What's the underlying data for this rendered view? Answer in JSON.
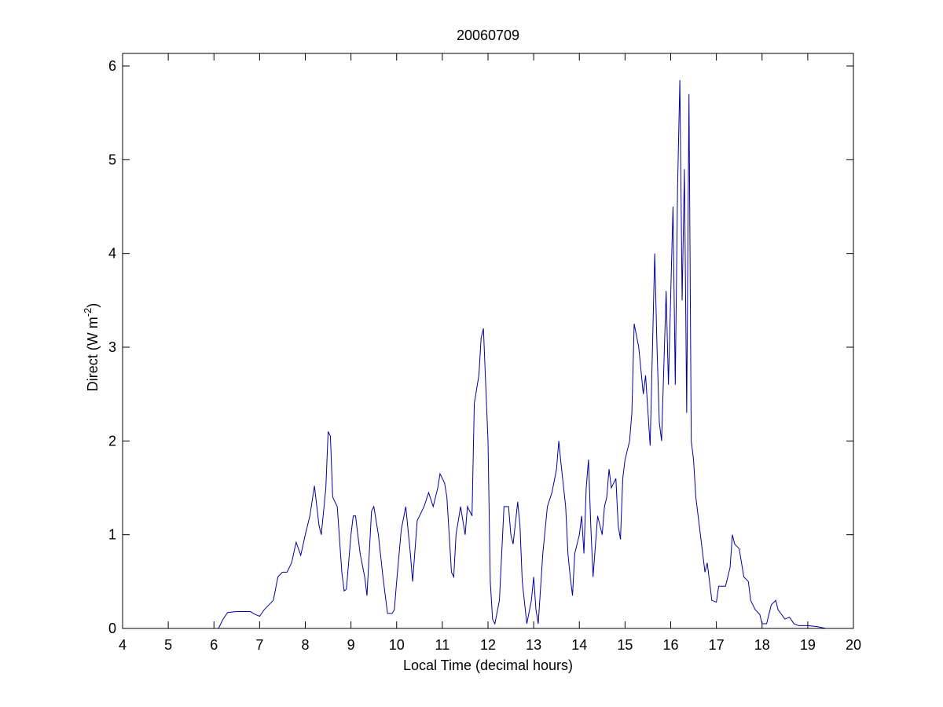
{
  "chart_data": {
    "type": "line",
    "title": "20060709",
    "xlabel": "Local Time (decimal hours)",
    "ylabel": [
      "Direct (W m",
      "-2",
      ")"
    ],
    "xlim": [
      4,
      20
    ],
    "xticks": [
      4,
      5,
      6,
      7,
      8,
      9,
      10,
      11,
      12,
      13,
      14,
      15,
      16,
      17,
      18,
      19,
      20
    ],
    "ylim": [
      0,
      6
    ],
    "yticks": [
      0,
      1,
      2,
      3,
      4,
      5,
      6
    ],
    "grid": false,
    "series": [
      {
        "color": "#0000a0",
        "x": [
          6.1,
          6.2,
          6.3,
          6.5,
          6.8,
          6.9,
          7.0,
          7.1,
          7.2,
          7.3,
          7.4,
          7.5,
          7.6,
          7.7,
          7.8,
          7.9,
          8.0,
          8.1,
          8.2,
          8.3,
          8.35,
          8.45,
          8.5,
          8.55,
          8.6,
          8.7,
          8.8,
          8.85,
          8.9,
          9.0,
          9.05,
          9.1,
          9.2,
          9.3,
          9.35,
          9.45,
          9.5,
          9.6,
          9.7,
          9.8,
          9.9,
          9.95,
          10.0,
          10.1,
          10.2,
          10.3,
          10.35,
          10.45,
          10.6,
          10.7,
          10.8,
          10.9,
          10.95,
          11.05,
          11.1,
          11.2,
          11.25,
          11.3,
          11.4,
          11.5,
          11.55,
          11.65,
          11.7,
          11.8,
          11.85,
          11.9,
          12.0,
          12.05,
          12.1,
          12.15,
          12.25,
          12.35,
          12.45,
          12.5,
          12.55,
          12.65,
          12.7,
          12.75,
          12.85,
          12.95,
          13.0,
          13.05,
          13.1,
          13.2,
          13.3,
          13.4,
          13.5,
          13.55,
          13.6,
          13.7,
          13.75,
          13.8,
          13.85,
          13.9,
          14.0,
          14.05,
          14.1,
          14.15,
          14.2,
          14.25,
          14.3,
          14.4,
          14.5,
          14.55,
          14.6,
          14.65,
          14.7,
          14.8,
          14.85,
          14.9,
          14.95,
          15.0,
          15.1,
          15.15,
          15.2,
          15.3,
          15.4,
          15.45,
          15.55,
          15.65,
          15.7,
          15.75,
          15.8,
          15.9,
          15.95,
          16.05,
          16.1,
          16.15,
          16.2,
          16.25,
          16.3,
          16.35,
          16.4,
          16.45,
          16.5,
          16.55,
          16.65,
          16.7,
          16.75,
          16.8,
          16.85,
          16.9,
          17.0,
          17.05,
          17.2,
          17.3,
          17.35,
          17.4,
          17.5,
          17.6,
          17.7,
          17.75,
          17.85,
          17.95,
          18.0,
          18.1,
          18.2,
          18.3,
          18.35,
          18.5,
          18.6,
          18.7,
          18.8,
          19.0,
          19.2,
          19.4
        ],
        "values": [
          0,
          0.1,
          0.17,
          0.18,
          0.18,
          0.15,
          0.13,
          0.2,
          0.25,
          0.3,
          0.55,
          0.6,
          0.6,
          0.7,
          0.92,
          0.78,
          1.0,
          1.2,
          1.52,
          1.1,
          1.0,
          1.5,
          2.1,
          2.05,
          1.4,
          1.3,
          0.6,
          0.4,
          0.42,
          1.0,
          1.2,
          1.2,
          0.8,
          0.55,
          0.35,
          1.25,
          1.3,
          1.0,
          0.55,
          0.16,
          0.16,
          0.2,
          0.5,
          1.05,
          1.3,
          0.8,
          0.5,
          1.15,
          1.3,
          1.45,
          1.3,
          1.5,
          1.65,
          1.55,
          1.4,
          0.6,
          0.55,
          1.0,
          1.3,
          1.0,
          1.3,
          1.2,
          2.4,
          2.7,
          3.1,
          3.2,
          2.0,
          0.5,
          0.1,
          0.05,
          0.3,
          1.3,
          1.3,
          1.0,
          0.9,
          1.35,
          1.1,
          0.5,
          0.05,
          0.3,
          0.55,
          0.2,
          0.05,
          0.8,
          1.3,
          1.45,
          1.7,
          2.0,
          1.75,
          1.3,
          0.8,
          0.55,
          0.35,
          0.8,
          1.0,
          1.2,
          0.8,
          1.5,
          1.8,
          1.1,
          0.55,
          1.2,
          1.0,
          1.3,
          1.4,
          1.7,
          1.5,
          1.6,
          1.1,
          0.95,
          1.6,
          1.8,
          2.0,
          2.3,
          3.25,
          3.0,
          2.5,
          2.7,
          1.95,
          4.0,
          3.0,
          2.2,
          2.0,
          3.6,
          2.6,
          4.5,
          2.6,
          4.7,
          5.85,
          3.5,
          4.9,
          2.3,
          5.7,
          2.0,
          1.8,
          1.4,
          1.0,
          0.8,
          0.6,
          0.7,
          0.5,
          0.3,
          0.28,
          0.45,
          0.45,
          0.65,
          1.0,
          0.9,
          0.85,
          0.55,
          0.5,
          0.3,
          0.2,
          0.15,
          0.05,
          0.05,
          0.25,
          0.3,
          0.2,
          0.1,
          0.12,
          0.05,
          0.03,
          0.03,
          0.02,
          0
        ]
      }
    ]
  }
}
